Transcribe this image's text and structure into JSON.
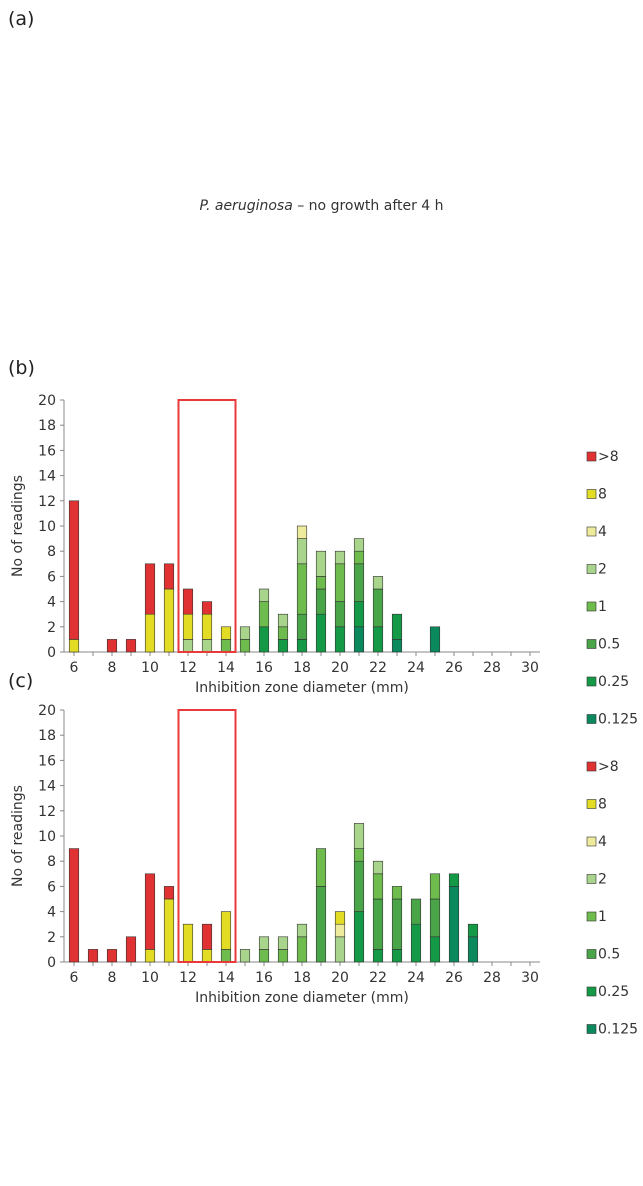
{
  "panel_a": {
    "label": "(a)",
    "note_species": "P. aeruginosa",
    "note_rest": " – no growth after 4 h"
  },
  "colors": {
    ">8": "#e03232",
    "8": "#e2dc24",
    "4": "#eeeb9c",
    "2": "#a8d48c",
    "1": "#6fbc4e",
    "0.5": "#4aa548",
    "0.25": "#149a46",
    "0.125": "#0a8a5c",
    "breakpoint_box": "#e83a3a"
  },
  "chart_data": [
    {
      "panel": "(b)",
      "type": "bar",
      "stacked": true,
      "xlabel": "Inhibition zone diameter (mm)",
      "ylabel": "No of readings",
      "xlim": [
        6,
        30
      ],
      "ylim": [
        0,
        20
      ],
      "xticks": [
        6,
        8,
        10,
        12,
        14,
        16,
        18,
        20,
        22,
        24,
        26,
        28,
        30
      ],
      "yticks": [
        0,
        2,
        4,
        6,
        8,
        10,
        12,
        14,
        16,
        18,
        20
      ],
      "grid": false,
      "legend_position": "right",
      "legend": [
        ">8",
        "8",
        "4",
        "2",
        "1",
        "0.5",
        "0.25",
        "0.125"
      ],
      "breakpoint_box": {
        "x_from": 11.5,
        "x_to": 14.5,
        "y_top": 20
      },
      "bars": [
        {
          "x": 6,
          "stack": [
            {
              "mic": "8",
              "count": 1
            },
            {
              "mic": ">8",
              "count": 11
            }
          ]
        },
        {
          "x": 8,
          "stack": [
            {
              "mic": ">8",
              "count": 1
            }
          ]
        },
        {
          "x": 9,
          "stack": [
            {
              "mic": ">8",
              "count": 1
            }
          ]
        },
        {
          "x": 10,
          "stack": [
            {
              "mic": "8",
              "count": 3
            },
            {
              "mic": ">8",
              "count": 4
            }
          ]
        },
        {
          "x": 11,
          "stack": [
            {
              "mic": "8",
              "count": 5
            },
            {
              "mic": ">8",
              "count": 2
            }
          ]
        },
        {
          "x": 12,
          "stack": [
            {
              "mic": "2",
              "count": 1
            },
            {
              "mic": "8",
              "count": 2
            },
            {
              "mic": ">8",
              "count": 2
            }
          ]
        },
        {
          "x": 13,
          "stack": [
            {
              "mic": "2",
              "count": 1
            },
            {
              "mic": "8",
              "count": 2
            },
            {
              "mic": ">8",
              "count": 1
            }
          ]
        },
        {
          "x": 14,
          "stack": [
            {
              "mic": "1",
              "count": 1
            },
            {
              "mic": "8",
              "count": 1
            }
          ]
        },
        {
          "x": 15,
          "stack": [
            {
              "mic": "1",
              "count": 1
            },
            {
              "mic": "2",
              "count": 1
            }
          ]
        },
        {
          "x": 16,
          "stack": [
            {
              "mic": "0.25",
              "count": 2
            },
            {
              "mic": "1",
              "count": 2
            },
            {
              "mic": "2",
              "count": 1
            }
          ]
        },
        {
          "x": 17,
          "stack": [
            {
              "mic": "0.25",
              "count": 1
            },
            {
              "mic": "1",
              "count": 1
            },
            {
              "mic": "2",
              "count": 1
            }
          ]
        },
        {
          "x": 18,
          "stack": [
            {
              "mic": "0.25",
              "count": 1
            },
            {
              "mic": "0.5",
              "count": 2
            },
            {
              "mic": "1",
              "count": 4
            },
            {
              "mic": "2",
              "count": 2
            },
            {
              "mic": "4",
              "count": 1
            }
          ]
        },
        {
          "x": 19,
          "stack": [
            {
              "mic": "0.25",
              "count": 3
            },
            {
              "mic": "0.5",
              "count": 2
            },
            {
              "mic": "1",
              "count": 1
            },
            {
              "mic": "2",
              "count": 2
            }
          ]
        },
        {
          "x": 20,
          "stack": [
            {
              "mic": "0.25",
              "count": 2
            },
            {
              "mic": "0.5",
              "count": 2
            },
            {
              "mic": "1",
              "count": 3
            },
            {
              "mic": "2",
              "count": 1
            }
          ]
        },
        {
          "x": 21,
          "stack": [
            {
              "mic": "0.125",
              "count": 2
            },
            {
              "mic": "0.25",
              "count": 2
            },
            {
              "mic": "0.5",
              "count": 3
            },
            {
              "mic": "1",
              "count": 1
            },
            {
              "mic": "2",
              "count": 1
            }
          ]
        },
        {
          "x": 22,
          "stack": [
            {
              "mic": "0.25",
              "count": 2
            },
            {
              "mic": "0.5",
              "count": 3
            },
            {
              "mic": "2",
              "count": 1
            }
          ]
        },
        {
          "x": 23,
          "stack": [
            {
              "mic": "0.125",
              "count": 1
            },
            {
              "mic": "0.25",
              "count": 2
            }
          ]
        },
        {
          "x": 25,
          "stack": [
            {
              "mic": "0.125",
              "count": 2
            }
          ]
        }
      ]
    },
    {
      "panel": "(c)",
      "type": "bar",
      "stacked": true,
      "xlabel": "Inhibition zone diameter (mm)",
      "ylabel": "No of readings",
      "xlim": [
        6,
        30
      ],
      "ylim": [
        0,
        20
      ],
      "xticks": [
        6,
        8,
        10,
        12,
        14,
        16,
        18,
        20,
        22,
        24,
        26,
        28,
        30
      ],
      "yticks": [
        0,
        2,
        4,
        6,
        8,
        10,
        12,
        14,
        16,
        18,
        20
      ],
      "grid": false,
      "legend_position": "right",
      "legend": [
        ">8",
        "8",
        "4",
        "2",
        "1",
        "0.5",
        "0.25",
        "0.125"
      ],
      "breakpoint_box": {
        "x_from": 11.5,
        "x_to": 14.5,
        "y_top": 20
      },
      "bars": [
        {
          "x": 6,
          "stack": [
            {
              "mic": ">8",
              "count": 9
            }
          ]
        },
        {
          "x": 7,
          "stack": [
            {
              "mic": ">8",
              "count": 1
            }
          ]
        },
        {
          "x": 8,
          "stack": [
            {
              "mic": ">8",
              "count": 1
            }
          ]
        },
        {
          "x": 9,
          "stack": [
            {
              "mic": ">8",
              "count": 2
            }
          ]
        },
        {
          "x": 10,
          "stack": [
            {
              "mic": "8",
              "count": 1
            },
            {
              "mic": ">8",
              "count": 6
            }
          ]
        },
        {
          "x": 11,
          "stack": [
            {
              "mic": "8",
              "count": 5
            },
            {
              "mic": ">8",
              "count": 1
            }
          ]
        },
        {
          "x": 12,
          "stack": [
            {
              "mic": "8",
              "count": 3
            }
          ]
        },
        {
          "x": 13,
          "stack": [
            {
              "mic": "8",
              "count": 1
            },
            {
              "mic": ">8",
              "count": 2
            }
          ]
        },
        {
          "x": 14,
          "stack": [
            {
              "mic": "1",
              "count": 1
            },
            {
              "mic": "8",
              "count": 3
            }
          ]
        },
        {
          "x": 15,
          "stack": [
            {
              "mic": "2",
              "count": 1
            }
          ]
        },
        {
          "x": 16,
          "stack": [
            {
              "mic": "1",
              "count": 1
            },
            {
              "mic": "2",
              "count": 1
            }
          ]
        },
        {
          "x": 17,
          "stack": [
            {
              "mic": "1",
              "count": 1
            },
            {
              "mic": "2",
              "count": 1
            }
          ]
        },
        {
          "x": 18,
          "stack": [
            {
              "mic": "1",
              "count": 2
            },
            {
              "mic": "2",
              "count": 1
            }
          ]
        },
        {
          "x": 19,
          "stack": [
            {
              "mic": "1",
              "count": 3
            },
            {
              "mic": "0.5",
              "count": 6
            }
          ]
        },
        {
          "x": 20,
          "stack": [
            {
              "mic": "2",
              "count": 2
            },
            {
              "mic": "4",
              "count": 1
            },
            {
              "mic": "8",
              "count": 1
            }
          ]
        },
        {
          "x": 21,
          "stack": [
            {
              "mic": "0.25",
              "count": 4
            },
            {
              "mic": "0.5",
              "count": 4
            },
            {
              "mic": "1",
              "count": 1
            },
            {
              "mic": "2",
              "count": 2
            }
          ]
        },
        {
          "x": 22,
          "stack": [
            {
              "mic": "0.25",
              "count": 1
            },
            {
              "mic": "0.5",
              "count": 4
            },
            {
              "mic": "1",
              "count": 2
            },
            {
              "mic": "2",
              "count": 1
            }
          ]
        },
        {
          "x": 23,
          "stack": [
            {
              "mic": "0.25",
              "count": 1
            },
            {
              "mic": "0.5",
              "count": 4
            },
            {
              "mic": "1",
              "count": 1
            }
          ]
        },
        {
          "x": 24,
          "stack": [
            {
              "mic": "0.25",
              "count": 3
            },
            {
              "mic": "0.5",
              "count": 2
            }
          ]
        },
        {
          "x": 25,
          "stack": [
            {
              "mic": "0.25",
              "count": 2
            },
            {
              "mic": "0.5",
              "count": 3
            },
            {
              "mic": "1",
              "count": 2
            }
          ]
        },
        {
          "x": 26,
          "stack": [
            {
              "mic": "0.125",
              "count": 6
            },
            {
              "mic": "0.25",
              "count": 1
            }
          ]
        },
        {
          "x": 27,
          "stack": [
            {
              "mic": "0.125",
              "count": 2
            },
            {
              "mic": "0.25",
              "count": 1
            }
          ]
        }
      ]
    }
  ]
}
